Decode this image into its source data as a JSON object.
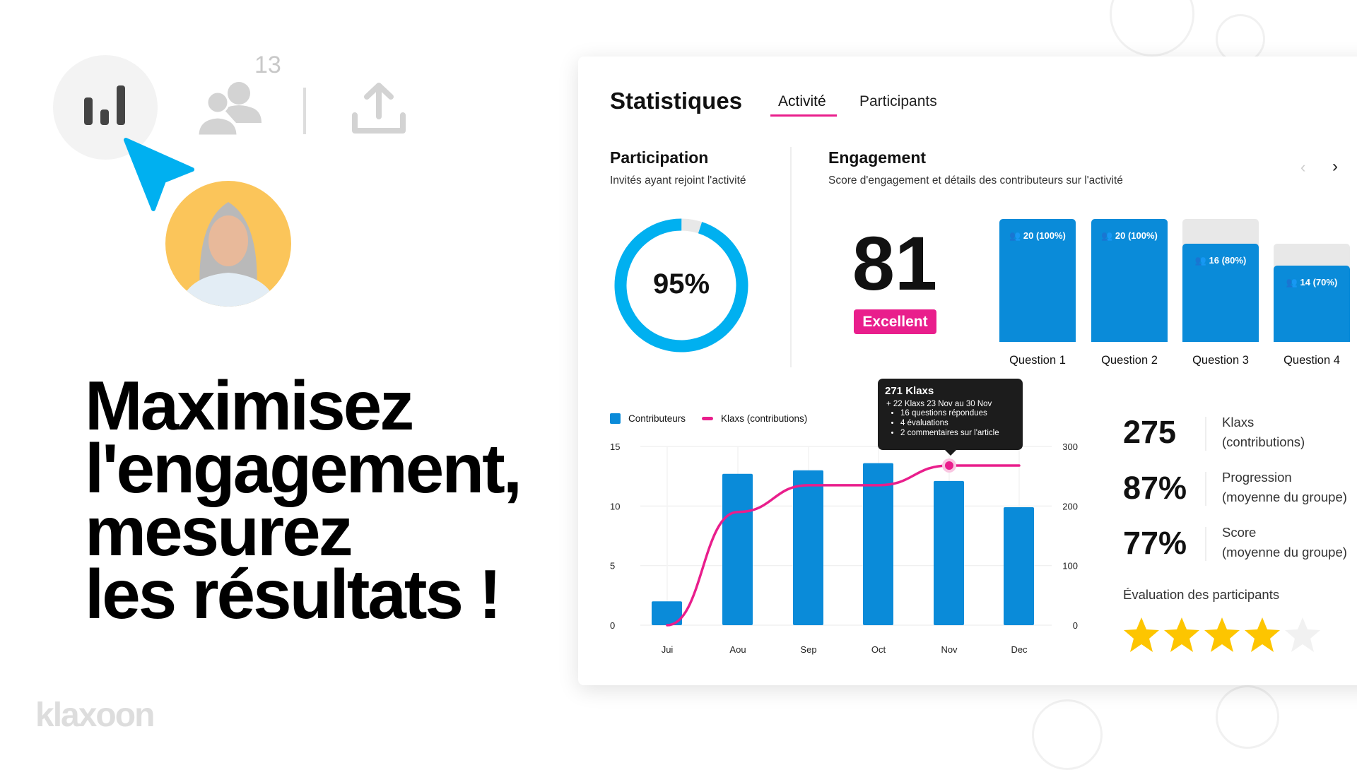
{
  "toolbar": {
    "participants_count": "13",
    "icons": [
      "bar-chart-icon",
      "users-icon",
      "upload-icon"
    ]
  },
  "headline": {
    "lines": [
      "Maximisez",
      "l'engagement,",
      "mesurez",
      "les résultats !"
    ]
  },
  "logo": "klaxoon",
  "card": {
    "title": "Statistiques",
    "tabs": [
      {
        "label": "Activité",
        "active": true
      },
      {
        "label": "Participants",
        "active": false
      }
    ],
    "participation": {
      "title": "Participation",
      "subtitle": "Invités ayant rejoint l'activité",
      "value_label": "95%",
      "value": 95
    },
    "engagement": {
      "title": "Engagement",
      "subtitle": "Score d'engagement et détails des contributeurs sur l'activité",
      "score": "81",
      "badge": "Excellent",
      "questions": [
        {
          "label": "Question 1",
          "value_label": "20 (100%)",
          "percent": 100,
          "track": 100
        },
        {
          "label": "Question 2",
          "value_label": "20 (100%)",
          "percent": 100,
          "track": 100
        },
        {
          "label": "Question 3",
          "value_label": "16 (80%)",
          "percent": 80,
          "track": 100
        },
        {
          "label": "Question 4",
          "value_label": "14 (70%)",
          "percent": 70,
          "track": 80
        }
      ]
    },
    "tooltip": {
      "title": "271 Klaxs",
      "line": "+ 22 Klaxs 23 Nov au 30 Nov",
      "items": [
        "16 questions répondues",
        "4 évaluations",
        "2 commentaires sur l'article"
      ]
    },
    "stats": [
      {
        "value": "275",
        "label1": "Klaxs",
        "label2": "(contributions)"
      },
      {
        "value": "87%",
        "label1": "Progression",
        "label2": "(moyenne du groupe)"
      },
      {
        "value": "77%",
        "label1": "Score",
        "label2": "(moyenne du groupe)"
      }
    ],
    "rating": {
      "label": "Évaluation des participants",
      "stars": 4,
      "max": 5
    }
  },
  "colors": {
    "accent": "#e91e8c",
    "blue": "#0a8bd9",
    "cyan": "#00b0f0",
    "star": "#fdc500"
  },
  "chart_data": {
    "type": "bar",
    "categories": [
      "Jui",
      "Aou",
      "Sep",
      "Oct",
      "Nov",
      "Dec"
    ],
    "series": [
      {
        "name": "Contributeurs",
        "type": "bar",
        "axis": "left",
        "values": [
          2,
          12.7,
          13,
          13.6,
          12.1,
          9.9
        ]
      },
      {
        "name": "Klaxs (contributions)",
        "type": "line",
        "axis": "right",
        "values": [
          0,
          190,
          235,
          235,
          268,
          268
        ]
      }
    ],
    "y_left": {
      "ticks": [
        "0",
        "5",
        "10",
        "15"
      ],
      "range": [
        0,
        15
      ]
    },
    "y_right": {
      "ticks": [
        "0",
        "100",
        "200",
        "300"
      ],
      "range": [
        0,
        300
      ]
    },
    "legend": "top-left",
    "grid": true,
    "highlight": "Nov"
  }
}
